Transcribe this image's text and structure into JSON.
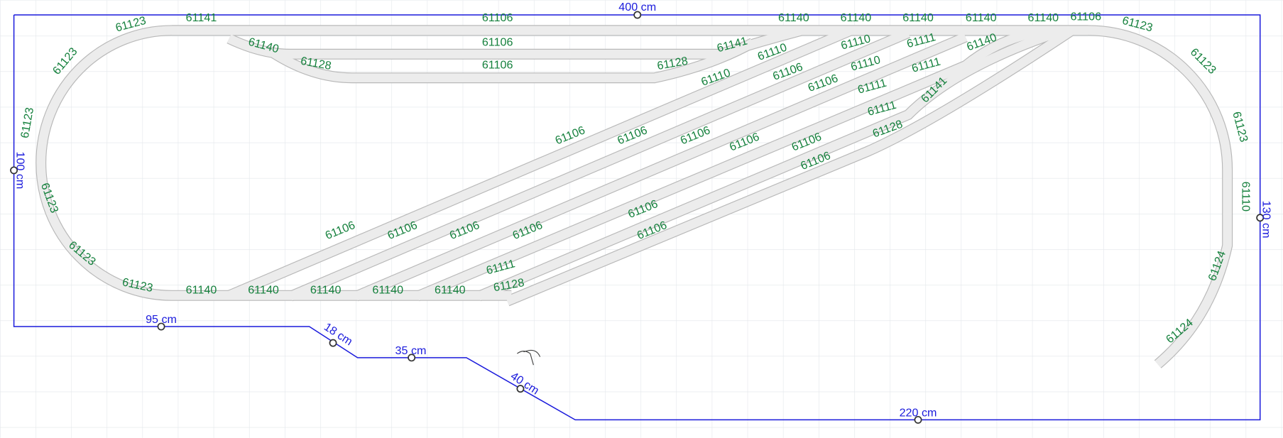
{
  "dimensions": [
    "400 cm",
    "100 cm",
    "130 cm",
    "95 cm",
    "18 cm",
    "35 cm",
    "40 cm",
    "220 cm"
  ],
  "parts": [
    "61141",
    "61123",
    "61123",
    "61123",
    "61123",
    "61123",
    "61123",
    "61140",
    "61128",
    "61106",
    "61106",
    "61106",
    "61141",
    "61128",
    "61110",
    "61110",
    "61106",
    "61106",
    "61110",
    "61110",
    "61111",
    "61111",
    "61111",
    "61111",
    "61128",
    "61141",
    "61140",
    "61140",
    "61140",
    "61140",
    "61140",
    "61140",
    "61106",
    "61123",
    "61123",
    "61123",
    "61110",
    "61124",
    "61124",
    "61106",
    "61106",
    "61106",
    "61106",
    "61106",
    "61106",
    "61106",
    "61106",
    "61106",
    "61106",
    "61106",
    "61106",
    "61140",
    "61140",
    "61140",
    "61140",
    "61140",
    "61128",
    "61111"
  ]
}
